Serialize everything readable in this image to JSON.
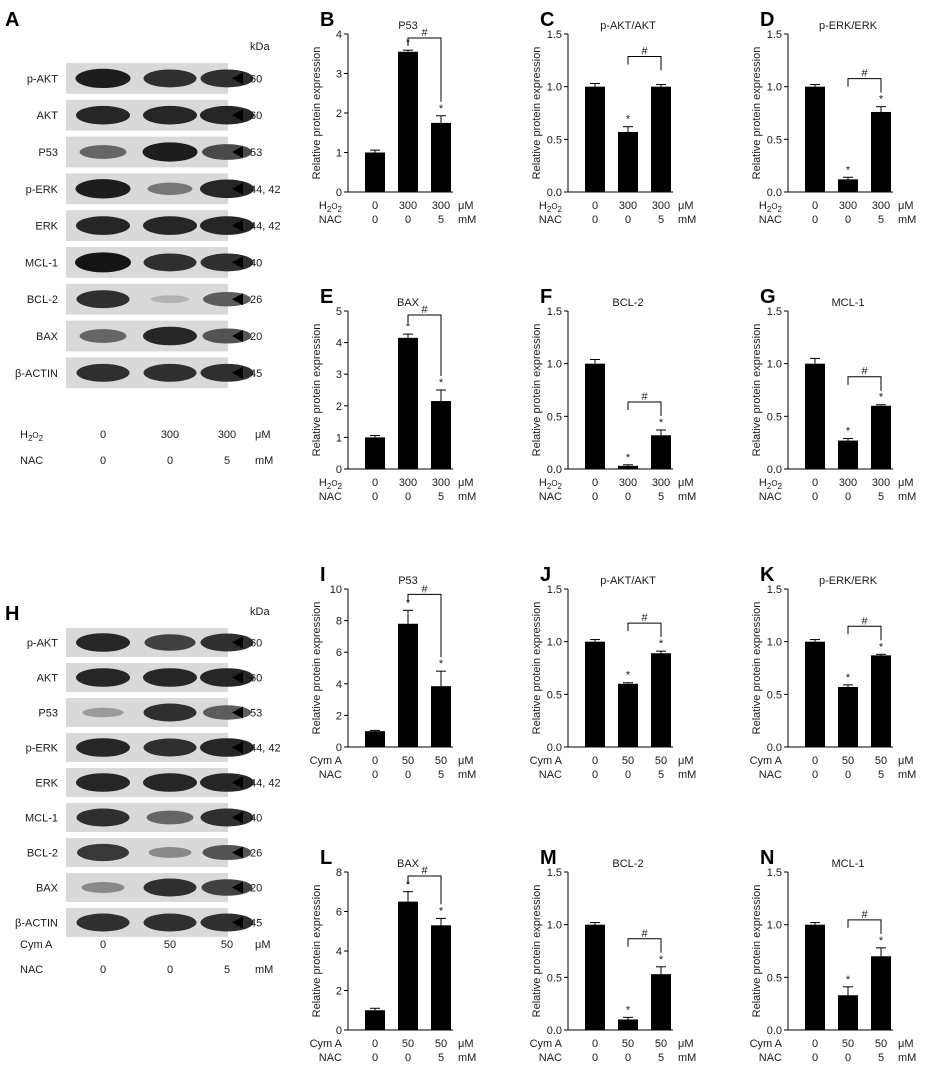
{
  "blots": [
    {
      "letter": "A",
      "kda_label": "kDa",
      "rows": [
        {
          "protein": "p-AKT",
          "kda": "60"
        },
        {
          "protein": "AKT",
          "kda": "60"
        },
        {
          "protein": "P53",
          "kda": "53"
        },
        {
          "protein": "p-ERK",
          "kda": "44, 42"
        },
        {
          "protein": "ERK",
          "kda": "44, 42"
        },
        {
          "protein": "MCL-1",
          "kda": "40"
        },
        {
          "protein": "BCL-2",
          "kda": "26"
        },
        {
          "protein": "BAX",
          "kda": "20"
        },
        {
          "protein": "β-ACTIN",
          "kda": "45"
        }
      ],
      "conditions": [
        {
          "label_main": "H",
          "label_sub": "2",
          "label_tail": "O",
          "label_sub2": "2",
          "values": [
            "0",
            "300",
            "300"
          ],
          "unit": "μM"
        },
        {
          "label_main": "NAC",
          "label_sub": "",
          "label_tail": "",
          "label_sub2": "",
          "values": [
            "0",
            "0",
            "5"
          ],
          "unit": "mM"
        }
      ],
      "band_intensity": [
        [
          0.95,
          0.85,
          0.85
        ],
        [
          0.9,
          0.9,
          0.9
        ],
        [
          0.55,
          0.95,
          0.7
        ],
        [
          0.95,
          0.45,
          0.9
        ],
        [
          0.9,
          0.9,
          0.9
        ],
        [
          1.0,
          0.85,
          0.85
        ],
        [
          0.85,
          0.12,
          0.6
        ],
        [
          0.55,
          0.9,
          0.65
        ],
        [
          0.85,
          0.85,
          0.85
        ]
      ]
    },
    {
      "letter": "H",
      "kda_label": "kDa",
      "rows": [
        {
          "protein": "p-AKT",
          "kda": "60"
        },
        {
          "protein": "AKT",
          "kda": "60"
        },
        {
          "protein": "P53",
          "kda": "53"
        },
        {
          "protein": "p-ERK",
          "kda": "44, 42"
        },
        {
          "protein": "ERK",
          "kda": "44, 42"
        },
        {
          "protein": "MCL-1",
          "kda": "40"
        },
        {
          "protein": "BCL-2",
          "kda": "26"
        },
        {
          "protein": "BAX",
          "kda": "20"
        },
        {
          "protein": "β-ACTIN",
          "kda": "45"
        }
      ],
      "conditions": [
        {
          "label_main": "Cym A",
          "label_sub": "",
          "label_tail": "",
          "label_sub2": "",
          "values": [
            "0",
            "50",
            "50"
          ],
          "unit": "μM"
        },
        {
          "label_main": "NAC",
          "label_sub": "",
          "label_tail": "",
          "label_sub2": "",
          "values": [
            "0",
            "0",
            "5"
          ],
          "unit": "mM"
        }
      ],
      "band_intensity": [
        [
          0.9,
          0.75,
          0.85
        ],
        [
          0.9,
          0.9,
          0.9
        ],
        [
          0.25,
          0.85,
          0.6
        ],
        [
          0.9,
          0.85,
          0.9
        ],
        [
          0.9,
          0.9,
          0.9
        ],
        [
          0.85,
          0.55,
          0.85
        ],
        [
          0.8,
          0.35,
          0.65
        ],
        [
          0.35,
          0.85,
          0.75
        ],
        [
          0.85,
          0.85,
          0.85
        ]
      ]
    }
  ],
  "chart_data": [
    {
      "letter": "B",
      "type": "bar",
      "title": "P53",
      "ylabel": "Relative protein expression",
      "ylim": [
        0,
        4
      ],
      "yticks": [
        "0",
        "1",
        "2",
        "3",
        "4"
      ],
      "values": [
        1.0,
        3.55,
        1.75
      ],
      "errors": [
        0.06,
        0.04,
        0.18
      ],
      "stars": [
        false,
        true,
        true
      ],
      "hash_bracket": true,
      "conditions": [
        {
          "label": "H2O2",
          "values": [
            "0",
            "300",
            "300"
          ],
          "unit": "μM"
        },
        {
          "label": "NAC",
          "values": [
            "0",
            "0",
            "5"
          ],
          "unit": "mM"
        }
      ]
    },
    {
      "letter": "C",
      "type": "bar",
      "title": "p-AKT/AKT",
      "ylabel": "Relative protein expression",
      "ylim": [
        0,
        1.5
      ],
      "yticks": [
        "0.0",
        "0.5",
        "1.0",
        "1.5"
      ],
      "values": [
        1.0,
        0.57,
        1.0
      ],
      "errors": [
        0.03,
        0.05,
        0.02
      ],
      "stars": [
        false,
        true,
        false
      ],
      "hash_bracket": true,
      "conditions": [
        {
          "label": "H2O2",
          "values": [
            "0",
            "300",
            "300"
          ],
          "unit": "μM"
        },
        {
          "label": "NAC",
          "values": [
            "0",
            "0",
            "5"
          ],
          "unit": "mM"
        }
      ]
    },
    {
      "letter": "D",
      "type": "bar",
      "title": "p-ERK/ERK",
      "ylabel": "Relative protein expression",
      "ylim": [
        0,
        1.5
      ],
      "yticks": [
        "0.0",
        "0.5",
        "1.0",
        "1.5"
      ],
      "values": [
        1.0,
        0.12,
        0.76
      ],
      "errors": [
        0.02,
        0.02,
        0.05
      ],
      "stars": [
        false,
        true,
        true
      ],
      "hash_bracket": true,
      "conditions": [
        {
          "label": "H2O2",
          "values": [
            "0",
            "300",
            "300"
          ],
          "unit": "μM"
        },
        {
          "label": "NAC",
          "values": [
            "0",
            "0",
            "5"
          ],
          "unit": "mM"
        }
      ]
    },
    {
      "letter": "E",
      "type": "bar",
      "title": "BAX",
      "ylabel": "Relative protein expression",
      "ylim": [
        0,
        5
      ],
      "yticks": [
        "0",
        "1",
        "2",
        "3",
        "4",
        "5"
      ],
      "values": [
        1.0,
        4.15,
        2.15
      ],
      "errors": [
        0.06,
        0.12,
        0.35
      ],
      "stars": [
        false,
        true,
        true
      ],
      "hash_bracket": true,
      "conditions": [
        {
          "label": "H2O2",
          "values": [
            "0",
            "300",
            "300"
          ],
          "unit": "μM"
        },
        {
          "label": "NAC",
          "values": [
            "0",
            "0",
            "5"
          ],
          "unit": "mM"
        }
      ]
    },
    {
      "letter": "F",
      "type": "bar",
      "title": "BCL-2",
      "ylabel": "Relative protein expression",
      "ylim": [
        0,
        1.5
      ],
      "yticks": [
        "0.0",
        "0.5",
        "1.0",
        "1.5"
      ],
      "values": [
        1.0,
        0.03,
        0.32
      ],
      "errors": [
        0.04,
        0.01,
        0.05
      ],
      "stars": [
        false,
        true,
        true
      ],
      "hash_bracket": true,
      "conditions": [
        {
          "label": "H2O2",
          "values": [
            "0",
            "300",
            "300"
          ],
          "unit": "μM"
        },
        {
          "label": "NAC",
          "values": [
            "0",
            "0",
            "5"
          ],
          "unit": "mM"
        }
      ]
    },
    {
      "letter": "G",
      "type": "bar",
      "title": "MCL-1",
      "ylabel": "Relative protein expression",
      "ylim": [
        0,
        1.5
      ],
      "yticks": [
        "0.0",
        "0.5",
        "1.0",
        "1.5"
      ],
      "values": [
        1.0,
        0.27,
        0.6
      ],
      "errors": [
        0.05,
        0.02,
        0.01
      ],
      "stars": [
        false,
        true,
        true
      ],
      "hash_bracket": true,
      "conditions": [
        {
          "label": "H2O2",
          "values": [
            "0",
            "300",
            "300"
          ],
          "unit": "μM"
        },
        {
          "label": "NAC",
          "values": [
            "0",
            "0",
            "5"
          ],
          "unit": "mM"
        }
      ]
    },
    {
      "letter": "I",
      "type": "bar",
      "title": "P53",
      "ylabel": "Relative protein expression",
      "ylim": [
        0,
        10
      ],
      "yticks": [
        "0",
        "2",
        "4",
        "6",
        "8",
        "10"
      ],
      "values": [
        1.0,
        7.8,
        3.85
      ],
      "errors": [
        0.05,
        0.85,
        0.95
      ],
      "stars": [
        false,
        true,
        true
      ],
      "hash_bracket": true,
      "conditions": [
        {
          "label": "Cym A",
          "values": [
            "0",
            "50",
            "50"
          ],
          "unit": "μM"
        },
        {
          "label": "NAC",
          "values": [
            "0",
            "0",
            "5"
          ],
          "unit": "mM"
        }
      ]
    },
    {
      "letter": "J",
      "type": "bar",
      "title": "p-AKT/AKT",
      "ylabel": "Relative protein expression",
      "ylim": [
        0,
        1.5
      ],
      "yticks": [
        "0.0",
        "0.5",
        "1.0",
        "1.5"
      ],
      "values": [
        1.0,
        0.6,
        0.89
      ],
      "errors": [
        0.02,
        0.01,
        0.02
      ],
      "stars": [
        false,
        true,
        true
      ],
      "hash_bracket": true,
      "conditions": [
        {
          "label": "Cym A",
          "values": [
            "0",
            "50",
            "50"
          ],
          "unit": "μM"
        },
        {
          "label": "NAC",
          "values": [
            "0",
            "0",
            "5"
          ],
          "unit": "mM"
        }
      ]
    },
    {
      "letter": "K",
      "type": "bar",
      "title": "p-ERK/ERK",
      "ylabel": "Relative protein expression",
      "ylim": [
        0,
        1.5
      ],
      "yticks": [
        "0.0",
        "0.5",
        "1.0",
        "1.5"
      ],
      "values": [
        1.0,
        0.57,
        0.87
      ],
      "errors": [
        0.02,
        0.02,
        0.01
      ],
      "stars": [
        false,
        true,
        true
      ],
      "hash_bracket": true,
      "conditions": [
        {
          "label": "Cym A",
          "values": [
            "0",
            "50",
            "50"
          ],
          "unit": "μM"
        },
        {
          "label": "NAC",
          "values": [
            "0",
            "0",
            "5"
          ],
          "unit": "mM"
        }
      ]
    },
    {
      "letter": "L",
      "type": "bar",
      "title": "BAX",
      "ylabel": "Relative protein expression",
      "ylim": [
        0,
        8
      ],
      "yticks": [
        "0",
        "2",
        "4",
        "6",
        "8"
      ],
      "values": [
        1.0,
        6.5,
        5.3
      ],
      "errors": [
        0.1,
        0.5,
        0.35
      ],
      "stars": [
        false,
        true,
        true
      ],
      "hash_bracket": true,
      "conditions": [
        {
          "label": "Cym A",
          "values": [
            "0",
            "50",
            "50"
          ],
          "unit": "μM"
        },
        {
          "label": "NAC",
          "values": [
            "0",
            "0",
            "5"
          ],
          "unit": "mM"
        }
      ]
    },
    {
      "letter": "M",
      "type": "bar",
      "title": "BCL-2",
      "ylabel": "Relative protein expression",
      "ylim": [
        0,
        1.5
      ],
      "yticks": [
        "0.0",
        "0.5",
        "1.0",
        "1.5"
      ],
      "values": [
        1.0,
        0.1,
        0.53
      ],
      "errors": [
        0.02,
        0.02,
        0.07
      ],
      "stars": [
        false,
        true,
        true
      ],
      "hash_bracket": true,
      "conditions": [
        {
          "label": "Cym A",
          "values": [
            "0",
            "50",
            "50"
          ],
          "unit": "μM"
        },
        {
          "label": "NAC",
          "values": [
            "0",
            "0",
            "5"
          ],
          "unit": "mM"
        }
      ]
    },
    {
      "letter": "N",
      "type": "bar",
      "title": "MCL-1",
      "ylabel": "Relative protein expression",
      "ylim": [
        0,
        1.5
      ],
      "yticks": [
        "0.0",
        "0.5",
        "1.0",
        "1.5"
      ],
      "values": [
        1.0,
        0.33,
        0.7
      ],
      "errors": [
        0.02,
        0.08,
        0.08
      ],
      "stars": [
        false,
        true,
        true
      ],
      "hash_bracket": true,
      "conditions": [
        {
          "label": "Cym A",
          "values": [
            "0",
            "50",
            "50"
          ],
          "unit": "μM"
        },
        {
          "label": "NAC",
          "values": [
            "0",
            "0",
            "5"
          ],
          "unit": "mM"
        }
      ]
    }
  ],
  "symbols": {
    "star": "*",
    "hash": "#"
  },
  "colors": {
    "bar": "#000000",
    "band_dark": "#1c1c1c",
    "blot_bg": "#d9d9d9"
  }
}
